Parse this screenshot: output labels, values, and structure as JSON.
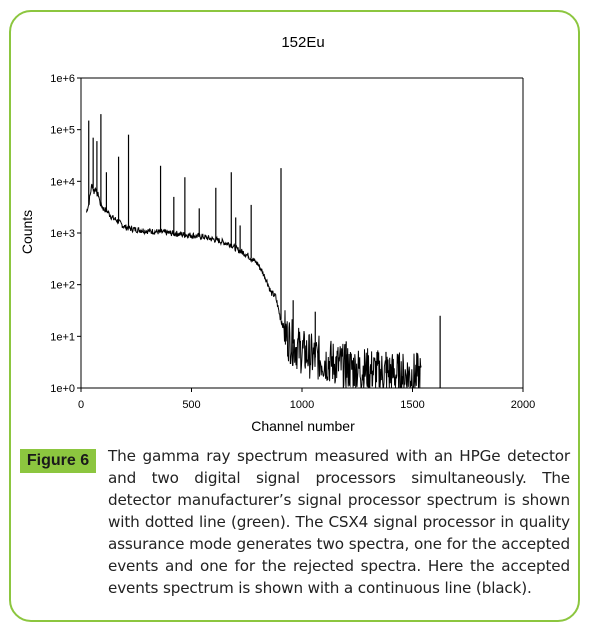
{
  "chart_data": {
    "type": "line",
    "title": "152Eu",
    "xlabel": "Channel number",
    "ylabel": "Counts",
    "xlim": [
      0,
      2000
    ],
    "ylim_log10": [
      0,
      6
    ],
    "y_scale": "log",
    "x_ticks": [
      0,
      500,
      1000,
      1500,
      2000
    ],
    "x_tick_labels": [
      "0",
      "500",
      "1000",
      "1500",
      "2000"
    ],
    "y_ticks": [
      0,
      1,
      2,
      3,
      4,
      5,
      6
    ],
    "y_tick_labels": [
      "1e+0",
      "1e+1",
      "1e+2",
      "1e+3",
      "1e+4",
      "1e+5",
      "1e+6"
    ],
    "grid": false,
    "legend": "none",
    "series": [
      {
        "color": "#000000",
        "x": [
          25,
          30,
          35,
          40,
          50,
          60,
          65,
          70,
          75,
          80,
          85,
          90,
          100,
          110,
          120,
          140,
          160,
          180,
          200,
          230,
          260,
          300,
          350,
          400,
          450,
          500,
          550,
          600,
          620,
          650,
          680,
          700,
          720,
          750,
          780,
          800,
          820,
          840,
          860,
          880,
          900,
          910,
          920,
          930,
          950,
          980,
          1000,
          1050,
          1100,
          1150,
          1200,
          1250,
          1300,
          1350,
          1400,
          1450,
          1500,
          1540
        ],
        "y": [
          2500,
          3200,
          3500,
          5000,
          9000,
          6000,
          8000,
          6000,
          5500,
          5500,
          4000,
          3500,
          3000,
          2800,
          2600,
          2000,
          1800,
          1500,
          1300,
          1200,
          1150,
          1100,
          1050,
          1000,
          950,
          900,
          850,
          750,
          720,
          650,
          600,
          500,
          450,
          380,
          300,
          250,
          180,
          120,
          70,
          60,
          25,
          18,
          14,
          10,
          8,
          6,
          5,
          4,
          3.5,
          3,
          2.5,
          2.3,
          2.2,
          2,
          1.9,
          1.8,
          1.8,
          1.7
        ]
      }
    ],
    "peaks": [
      {
        "x": 35,
        "y": 150000
      },
      {
        "x": 55,
        "y": 70000
      },
      {
        "x": 72,
        "y": 60000
      },
      {
        "x": 90,
        "y": 200000
      },
      {
        "x": 115,
        "y": 15000
      },
      {
        "x": 170,
        "y": 30000
      },
      {
        "x": 215,
        "y": 80000
      },
      {
        "x": 360,
        "y": 20000
      },
      {
        "x": 420,
        "y": 5000
      },
      {
        "x": 470,
        "y": 12000
      },
      {
        "x": 535,
        "y": 3000
      },
      {
        "x": 610,
        "y": 7500
      },
      {
        "x": 680,
        "y": 15000
      },
      {
        "x": 700,
        "y": 2000
      },
      {
        "x": 720,
        "y": 1400
      },
      {
        "x": 770,
        "y": 3500
      },
      {
        "x": 905,
        "y": 18000
      },
      {
        "x": 960,
        "y": 50
      },
      {
        "x": 1060,
        "y": 30
      },
      {
        "x": 1200,
        "y": 8
      },
      {
        "x": 1380,
        "y": 5
      },
      {
        "x": 1520,
        "y": 3
      },
      {
        "x": 1625,
        "y": 25
      }
    ]
  },
  "caption": {
    "label": "Figure 6",
    "text": "The gamma ray spectrum measured with an HPGe detector and two digital signal processors simultaneously. The detector manufacturer’s signal processor spectrum is shown with dotted line (green). The CSX4 signal processor in quality assurance mode generates two spectra, one for the accepted events and one for the rejected spectra. Here the accepted events spectrum is shown with a continuous line (black)."
  }
}
